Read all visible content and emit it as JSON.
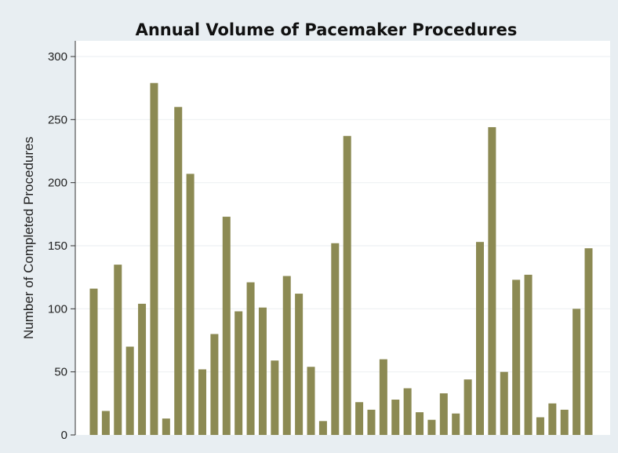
{
  "chart_data": {
    "type": "bar",
    "title": "Annual Volume of Pacemaker Procedures",
    "xlabel": "",
    "ylabel": "Number of Completed Procedures",
    "ylim": [
      0,
      300
    ],
    "yticks": [
      0,
      50,
      100,
      150,
      200,
      250,
      300
    ],
    "grid": true,
    "legend": "none",
    "bar_color": "#8c8a53",
    "values": [
      116,
      19,
      135,
      70,
      104,
      279,
      13,
      260,
      207,
      52,
      80,
      173,
      98,
      121,
      101,
      59,
      126,
      112,
      54,
      11,
      152,
      237,
      26,
      20,
      60,
      28,
      37,
      18,
      12,
      33,
      17,
      44,
      153,
      244,
      50,
      123,
      127,
      14,
      25,
      20,
      100,
      148
    ]
  }
}
